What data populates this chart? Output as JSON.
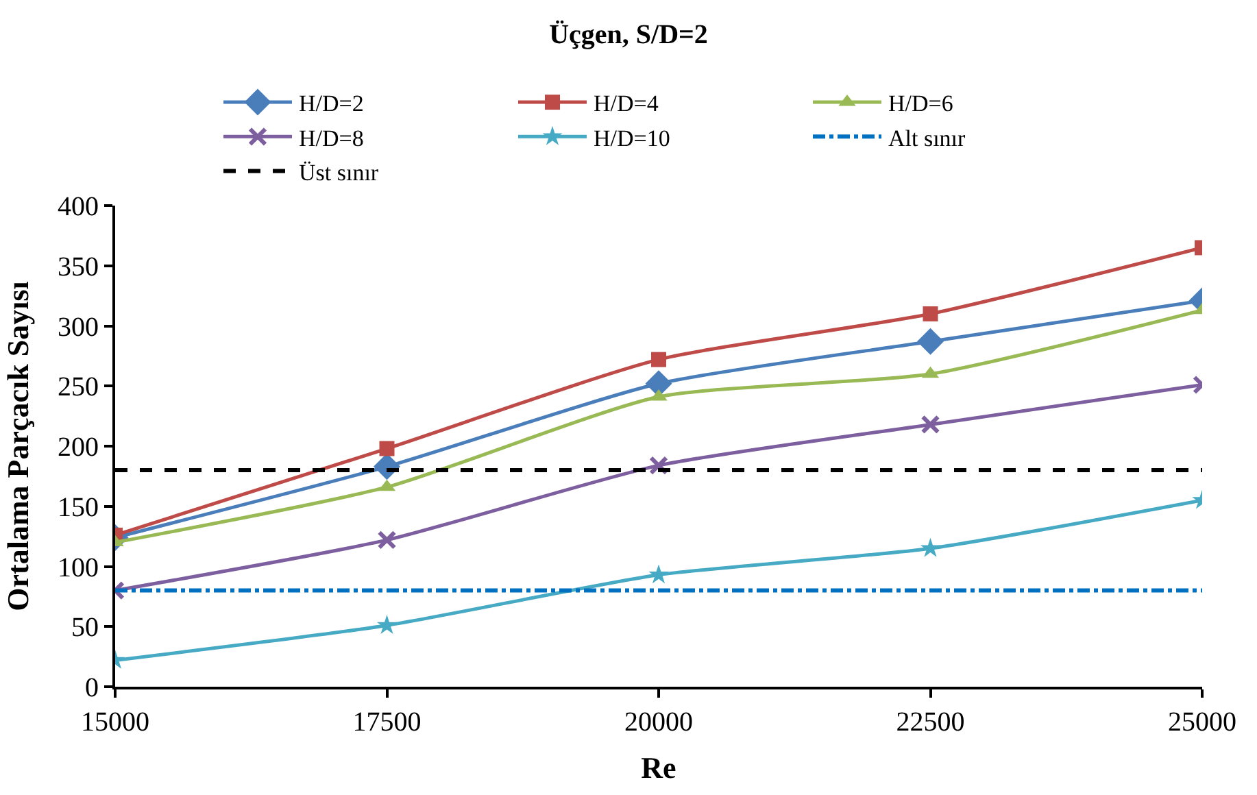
{
  "chart_data": {
    "type": "line",
    "title": "Üçgen, S/D=2",
    "xlabel": "Re",
    "ylabel": "Ortalama Parçacık Sayısı",
    "x": [
      15000,
      17500,
      20000,
      22500,
      25000
    ],
    "xlim": [
      15000,
      25000
    ],
    "xticks": [
      15000,
      17500,
      20000,
      22500,
      25000
    ],
    "ylim": [
      0,
      400
    ],
    "yticks": [
      0,
      50,
      100,
      150,
      200,
      250,
      300,
      350,
      400
    ],
    "legend": "top",
    "series": [
      {
        "name": "H/D=2",
        "color": "#4a7ebb",
        "marker": "diamond",
        "values": [
          124,
          183,
          252,
          287,
          321
        ]
      },
      {
        "name": "H/D=4",
        "color": "#be4b48",
        "marker": "square",
        "values": [
          126,
          198,
          272,
          310,
          365
        ]
      },
      {
        "name": "H/D=6",
        "color": "#98b954",
        "marker": "triangle",
        "values": [
          120,
          166,
          241,
          260,
          313
        ]
      },
      {
        "name": "H/D=8",
        "color": "#7d5fa0",
        "marker": "cross",
        "values": [
          80,
          122,
          184,
          218,
          251
        ]
      },
      {
        "name": "H/D=10",
        "color": "#46aac5",
        "marker": "star",
        "values": [
          22,
          51,
          93,
          115,
          155
        ]
      }
    ],
    "ref_lines": [
      {
        "axis": "y",
        "value": 80,
        "label": "Alt sınır",
        "color": "#0070c0",
        "line_style": "dashdot"
      },
      {
        "axis": "y",
        "value": 180,
        "label": "Üst sınır",
        "color": "#000000",
        "line_style": "dashed"
      }
    ]
  }
}
